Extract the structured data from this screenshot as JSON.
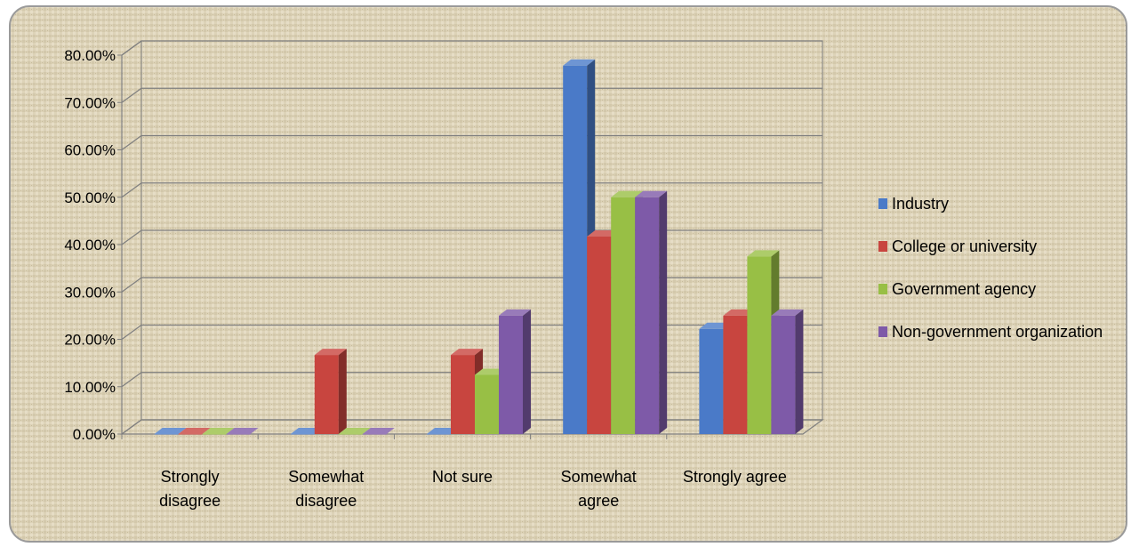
{
  "chart_data": {
    "type": "bar",
    "title": "",
    "xlabel": "",
    "ylabel": "",
    "ylim": [
      0,
      0.8
    ],
    "yticks": [
      "0.00%",
      "10.00%",
      "20.00%",
      "30.00%",
      "40.00%",
      "50.00%",
      "60.00%",
      "70.00%",
      "80.00%"
    ],
    "categories": [
      [
        "Strongly",
        "disagree"
      ],
      [
        "Somewhat",
        "disagree"
      ],
      [
        "Not sure"
      ],
      [
        "Somewhat",
        "agree"
      ],
      [
        "Strongly agree"
      ]
    ],
    "series": [
      {
        "name": "Industry",
        "color": "#4a7ac8",
        "values": [
          0,
          0,
          0,
          0.778,
          0.222
        ]
      },
      {
        "name": "College or university",
        "color": "#c8453f",
        "values": [
          0,
          0.167,
          0.167,
          0.417,
          0.25
        ]
      },
      {
        "name": "Government agency",
        "color": "#98bf45",
        "values": [
          0,
          0,
          0.125,
          0.5,
          0.375
        ]
      },
      {
        "name": "Non-government organization",
        "color": "#7e5aa8",
        "values": [
          0,
          0,
          0.25,
          0.5,
          0.25
        ]
      }
    ],
    "legend_position": "right",
    "grid": true,
    "style": "3d-clustered-column"
  }
}
